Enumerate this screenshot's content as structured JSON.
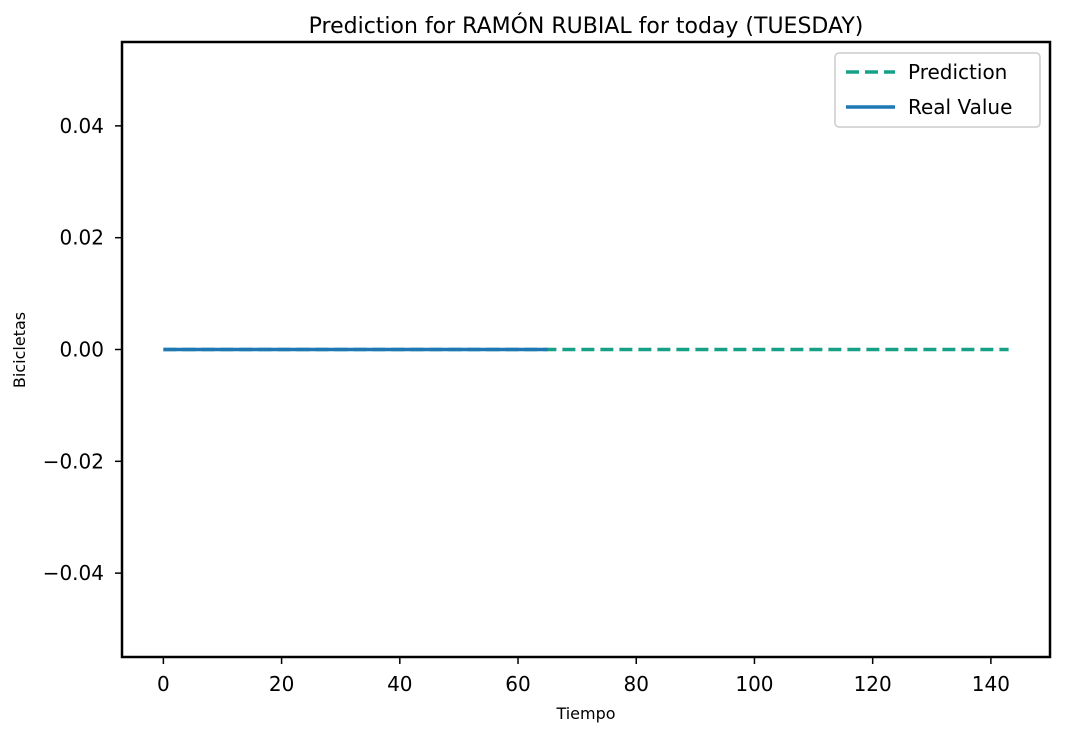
{
  "chart_data": {
    "type": "line",
    "title": "Prediction for RAMÓN RUBIAL for today (TUESDAY)",
    "xlabel": "Tiempo",
    "ylabel": "Bicicletas",
    "xlim": [
      -7,
      150
    ],
    "ylim": [
      -0.055,
      0.055
    ],
    "xticks": [
      0,
      20,
      40,
      60,
      80,
      100,
      120,
      140
    ],
    "yticks": [
      0.04,
      0.02,
      0.0,
      -0.02,
      -0.04
    ],
    "ytick_labels": [
      "0.04",
      "0.02",
      "0.00",
      "−0.02",
      "−0.04"
    ],
    "xtick_labels": [
      "0",
      "20",
      "40",
      "60",
      "80",
      "100",
      "120",
      "140"
    ],
    "grid": false,
    "legend_position": "top-right",
    "series": [
      {
        "name": "Prediction",
        "style": "dashed",
        "color": "#16a085",
        "x": [
          0,
          143
        ],
        "y": [
          0,
          0
        ]
      },
      {
        "name": "Real Value",
        "style": "solid",
        "color": "#1f77b4",
        "x": [
          0,
          65
        ],
        "y": [
          0,
          0
        ]
      }
    ]
  }
}
